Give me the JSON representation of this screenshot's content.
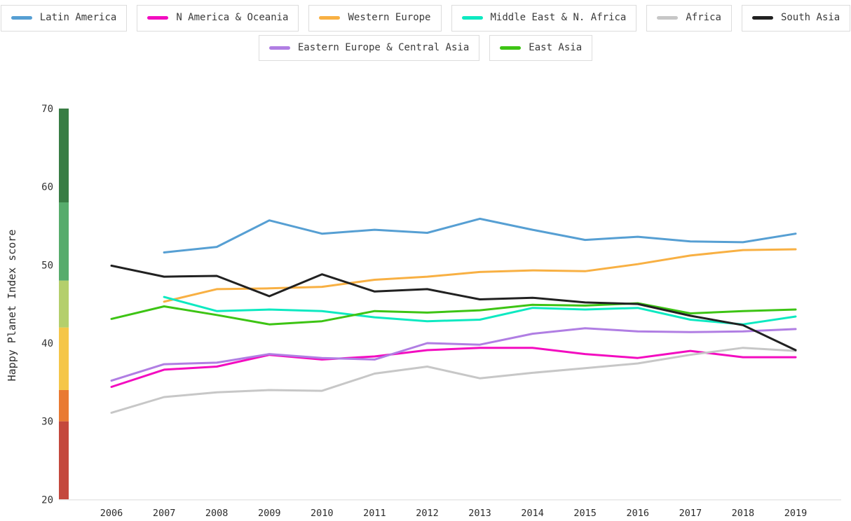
{
  "legend": {
    "rows": [
      [
        {
          "label": "Latin America",
          "color": "#569fd3"
        },
        {
          "label": "N America & Oceania",
          "color": "#f30cc0"
        },
        {
          "label": "Western Europe",
          "color": "#f8b043"
        },
        {
          "label": "Middle East & N. Africa",
          "color": "#0de9c1"
        },
        {
          "label": "Africa",
          "color": "#c7c7c7"
        },
        {
          "label": "South Asia",
          "color": "#212121"
        }
      ],
      [
        {
          "label": "Eastern Europe & Central Asia",
          "color": "#b07ee3"
        },
        {
          "label": "East Asia",
          "color": "#3dc414"
        }
      ]
    ]
  },
  "chart_data": {
    "type": "line",
    "title": "",
    "xlabel": "",
    "ylabel": "Happy Planet Index score",
    "x": [
      2006,
      2007,
      2008,
      2009,
      2010,
      2011,
      2012,
      2013,
      2014,
      2015,
      2016,
      2017,
      2018,
      2019
    ],
    "x_tick_labels": [
      "2006",
      "2007",
      "2008",
      "2009",
      "2010",
      "2011",
      "2012",
      "2013",
      "2014",
      "2015",
      "2016",
      "2017",
      "2018",
      "2019"
    ],
    "y_ticks": [
      20,
      30,
      40,
      50,
      60,
      70
    ],
    "ylim": [
      20,
      70
    ],
    "grid": false,
    "legend_position": "top",
    "axis_band_colors": [
      {
        "from": 20,
        "to": 30,
        "color": "#c4483d"
      },
      {
        "from": 30,
        "to": 34,
        "color": "#e97a32"
      },
      {
        "from": 34,
        "to": 42,
        "color": "#f5c648"
      },
      {
        "from": 42,
        "to": 48,
        "color": "#b4cf6c"
      },
      {
        "from": 48,
        "to": 58,
        "color": "#57ac6c"
      },
      {
        "from": 58,
        "to": 70,
        "color": "#387d44"
      }
    ],
    "series": [
      {
        "name": "Latin America",
        "color": "#569fd3",
        "values": [
          null,
          51.6,
          52.3,
          55.7,
          54.0,
          54.5,
          54.1,
          55.9,
          54.5,
          53.2,
          53.6,
          53.0,
          52.9,
          54.0
        ]
      },
      {
        "name": "N America & Oceania",
        "color": "#f30cc0",
        "values": [
          34.4,
          36.6,
          37.0,
          38.5,
          37.9,
          38.3,
          39.1,
          39.4,
          39.4,
          38.6,
          38.1,
          39.0,
          38.2,
          38.2
        ]
      },
      {
        "name": "Western Europe",
        "color": "#f8b043",
        "values": [
          null,
          45.3,
          46.9,
          47.0,
          47.2,
          48.1,
          48.5,
          49.1,
          49.3,
          49.2,
          50.1,
          51.2,
          51.9,
          52.0
        ]
      },
      {
        "name": "Middle East & N. Africa",
        "color": "#0de9c1",
        "values": [
          null,
          45.9,
          44.1,
          44.3,
          44.1,
          43.3,
          42.8,
          43.0,
          44.5,
          44.3,
          44.5,
          43.0,
          42.4,
          43.4
        ]
      },
      {
        "name": "Africa",
        "color": "#c7c7c7",
        "values": [
          31.1,
          33.1,
          33.7,
          34.0,
          33.9,
          36.1,
          37.0,
          35.5,
          36.2,
          36.8,
          37.4,
          38.5,
          39.4,
          39.0
        ]
      },
      {
        "name": "Eastern Europe & Central Asia",
        "color": "#b07ee3",
        "values": [
          35.2,
          37.3,
          37.5,
          38.6,
          38.1,
          37.9,
          40.0,
          39.8,
          41.2,
          41.9,
          41.5,
          41.4,
          41.5,
          41.8
        ]
      },
      {
        "name": "East Asia",
        "color": "#3dc414",
        "values": [
          43.1,
          44.7,
          43.6,
          42.4,
          42.8,
          44.1,
          43.9,
          44.2,
          44.9,
          44.8,
          45.1,
          43.8,
          44.1,
          44.3
        ]
      },
      {
        "name": "South Asia",
        "color": "#212121",
        "values": [
          49.9,
          48.5,
          48.6,
          46.0,
          48.8,
          46.6,
          46.9,
          45.6,
          45.8,
          45.2,
          45.0,
          43.5,
          42.3,
          39.1
        ]
      }
    ]
  }
}
